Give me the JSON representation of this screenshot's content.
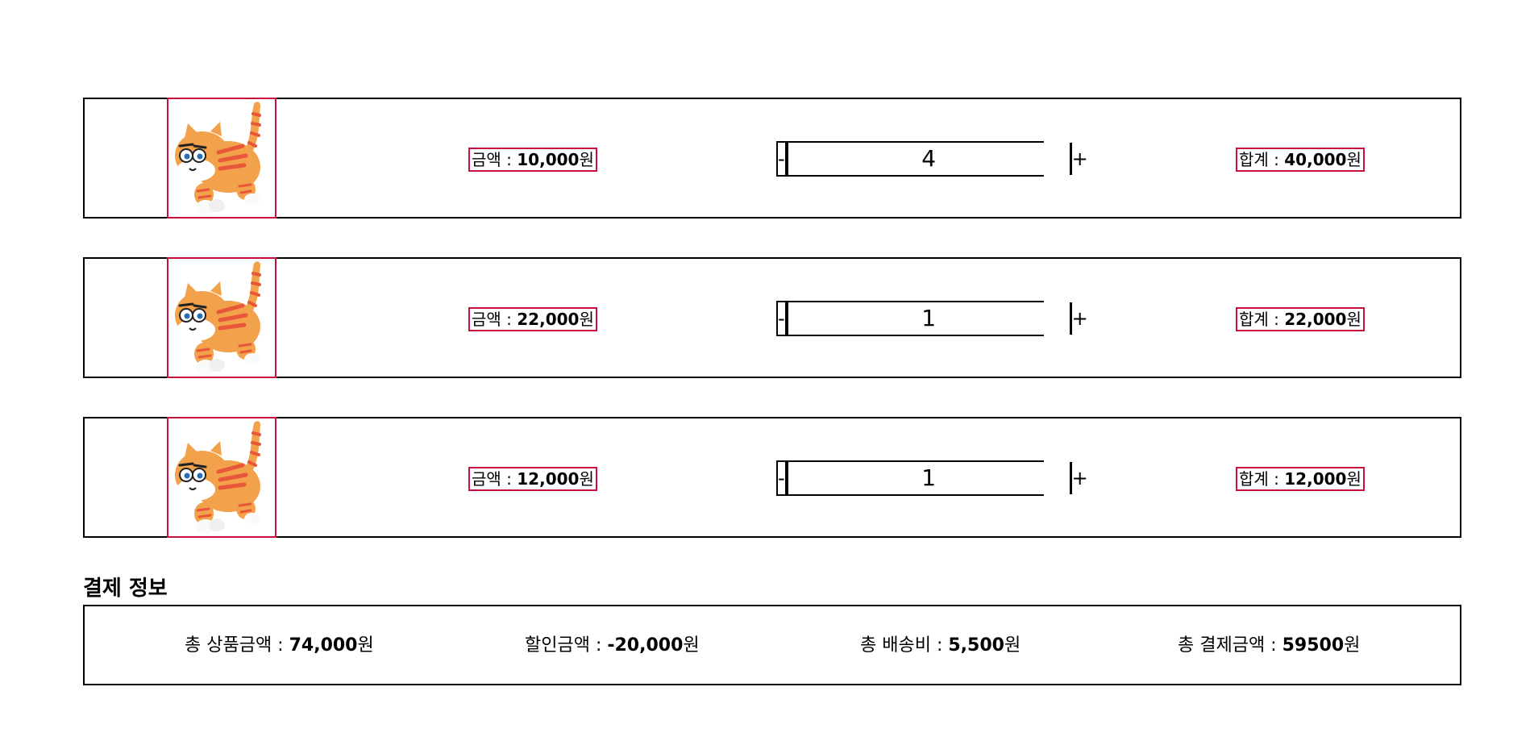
{
  "cart_items": [
    {
      "price_label": "금액 : ",
      "price": "10,000",
      "currency": "원",
      "quantity": "4",
      "subtotal_label": "합계 : ",
      "subtotal": "40,000",
      "minus": "-",
      "plus": "+"
    },
    {
      "price_label": "금액 : ",
      "price": "22,000",
      "currency": "원",
      "quantity": "1",
      "subtotal_label": "합계 : ",
      "subtotal": "22,000",
      "minus": "-",
      "plus": "+"
    },
    {
      "price_label": "금액 : ",
      "price": "12,000",
      "currency": "원",
      "quantity": "1",
      "subtotal_label": "합계 : ",
      "subtotal": "12,000",
      "minus": "-",
      "plus": "+"
    }
  ],
  "payment": {
    "title": "결제 정보",
    "total_product_label": "총 상품금액 : ",
    "total_product": "74,000",
    "discount_label": "할인금액 : ",
    "discount": "-20,000",
    "shipping_label": "총 배송비 : ",
    "shipping": "5,500",
    "total_payment_label": "총 결제금액 : ",
    "total_payment": "59500",
    "currency": "원"
  },
  "colors": {
    "highlight_border": "#c8103c",
    "cat_orange": "#f2a24a",
    "cat_stripe": "#e8573a"
  },
  "icons": {
    "product_image": "orange-cat-character"
  }
}
